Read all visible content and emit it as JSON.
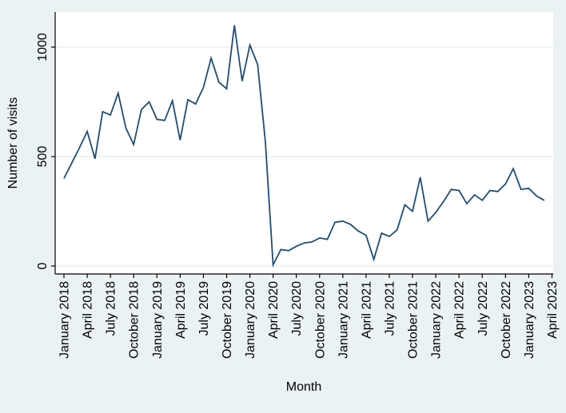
{
  "chart_data": {
    "type": "line",
    "title": "",
    "xlabel": "Month",
    "ylabel": "Number of visits",
    "x": [
      "January 2018",
      "February 2018",
      "March 2018",
      "April 2018",
      "May 2018",
      "June 2018",
      "July 2018",
      "August 2018",
      "September 2018",
      "October 2018",
      "November 2018",
      "December 2018",
      "January 2019",
      "February 2019",
      "March 2019",
      "April 2019",
      "May 2019",
      "June 2019",
      "July 2019",
      "August 2019",
      "September 2019",
      "October 2019",
      "November 2019",
      "December 2019",
      "January 2020",
      "February 2020",
      "March 2020",
      "April 2020",
      "May 2020",
      "June 2020",
      "July 2020",
      "August 2020",
      "September 2020",
      "October 2020",
      "November 2020",
      "December 2020",
      "January 2021",
      "February 2021",
      "March 2021",
      "April 2021",
      "May 2021",
      "June 2021",
      "July 2021",
      "August 2021",
      "September 2021",
      "October 2021",
      "November 2021",
      "December 2021",
      "January 2022",
      "February 2022",
      "March 2022",
      "April 2022",
      "May 2022",
      "June 2022",
      "July 2022",
      "August 2022",
      "September 2022",
      "October 2022",
      "November 2022",
      "December 2022",
      "January 2023",
      "February 2023",
      "March 2023"
    ],
    "values": [
      400,
      470,
      540,
      615,
      490,
      705,
      690,
      790,
      630,
      555,
      715,
      750,
      670,
      665,
      755,
      575,
      760,
      740,
      815,
      950,
      840,
      810,
      1100,
      845,
      1010,
      920,
      570,
      5,
      75,
      70,
      90,
      105,
      110,
      128,
      122,
      200,
      205,
      190,
      160,
      140,
      30,
      150,
      135,
      165,
      280,
      250,
      405,
      205,
      245,
      295,
      350,
      345,
      285,
      325,
      300,
      345,
      340,
      375,
      445,
      350,
      355,
      320,
      300
    ],
    "x_tick_labels": [
      "January 2018",
      "April 2018",
      "July 2018",
      "October 2018",
      "January 2019",
      "April 2019",
      "July 2019",
      "October 2019",
      "January 2020",
      "April 2020",
      "July 2020",
      "October 2020",
      "January 2021",
      "April 2021",
      "July 2021",
      "October 2021",
      "January 2022",
      "April 2022",
      "July 2022",
      "October 2022",
      "January 2023",
      "April 2023"
    ],
    "x_tick_every_months": 3,
    "y_ticks": [
      0,
      500,
      1000
    ],
    "y_tick_labels": [
      "0",
      "500",
      "1000"
    ],
    "ylim": [
      -35,
      1160
    ],
    "grid": true,
    "legend": "none",
    "line_color": "#1f4d78",
    "background_color": "#eaf2f3",
    "plot_background": "#ffffff",
    "gridline_color": "#dde9ea",
    "axis_color": "#000000"
  }
}
